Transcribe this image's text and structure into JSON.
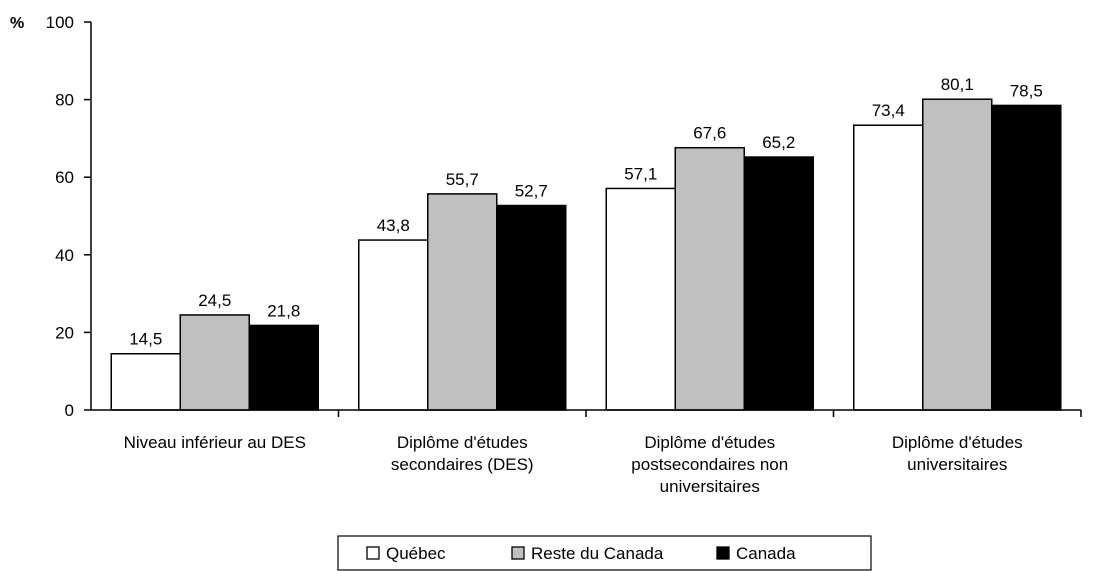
{
  "chart_data": {
    "type": "bar",
    "title": "",
    "xlabel": "",
    "ylabel": "%",
    "ylim": [
      0,
      100
    ],
    "yticks": [
      0,
      20,
      40,
      60,
      80,
      100
    ],
    "grid": false,
    "legend_position": "bottom-center",
    "categories": [
      [
        "Niveau inférieur au DES"
      ],
      [
        "Diplôme d'études",
        "secondaires (DES)"
      ],
      [
        "Diplôme d'études",
        "postsecondaires non",
        "universitaires"
      ],
      [
        "Diplôme d'études",
        "universitaires"
      ]
    ],
    "series": [
      {
        "name": "Québec",
        "color": "#ffffff",
        "values": [
          14.5,
          43.8,
          57.1,
          73.4
        ],
        "labels": [
          "14,5",
          "43,8",
          "57,1",
          "73,4"
        ]
      },
      {
        "name": "Reste du Canada",
        "color": "#c0c0c0",
        "values": [
          24.5,
          55.7,
          67.6,
          80.1
        ],
        "labels": [
          "24,5",
          "55,7",
          "67,6",
          "80,1"
        ]
      },
      {
        "name": "Canada",
        "color": "#000000",
        "values": [
          21.8,
          52.7,
          65.2,
          78.5
        ],
        "labels": [
          "21,8",
          "52,7",
          "65,2",
          "78,5"
        ]
      }
    ]
  }
}
